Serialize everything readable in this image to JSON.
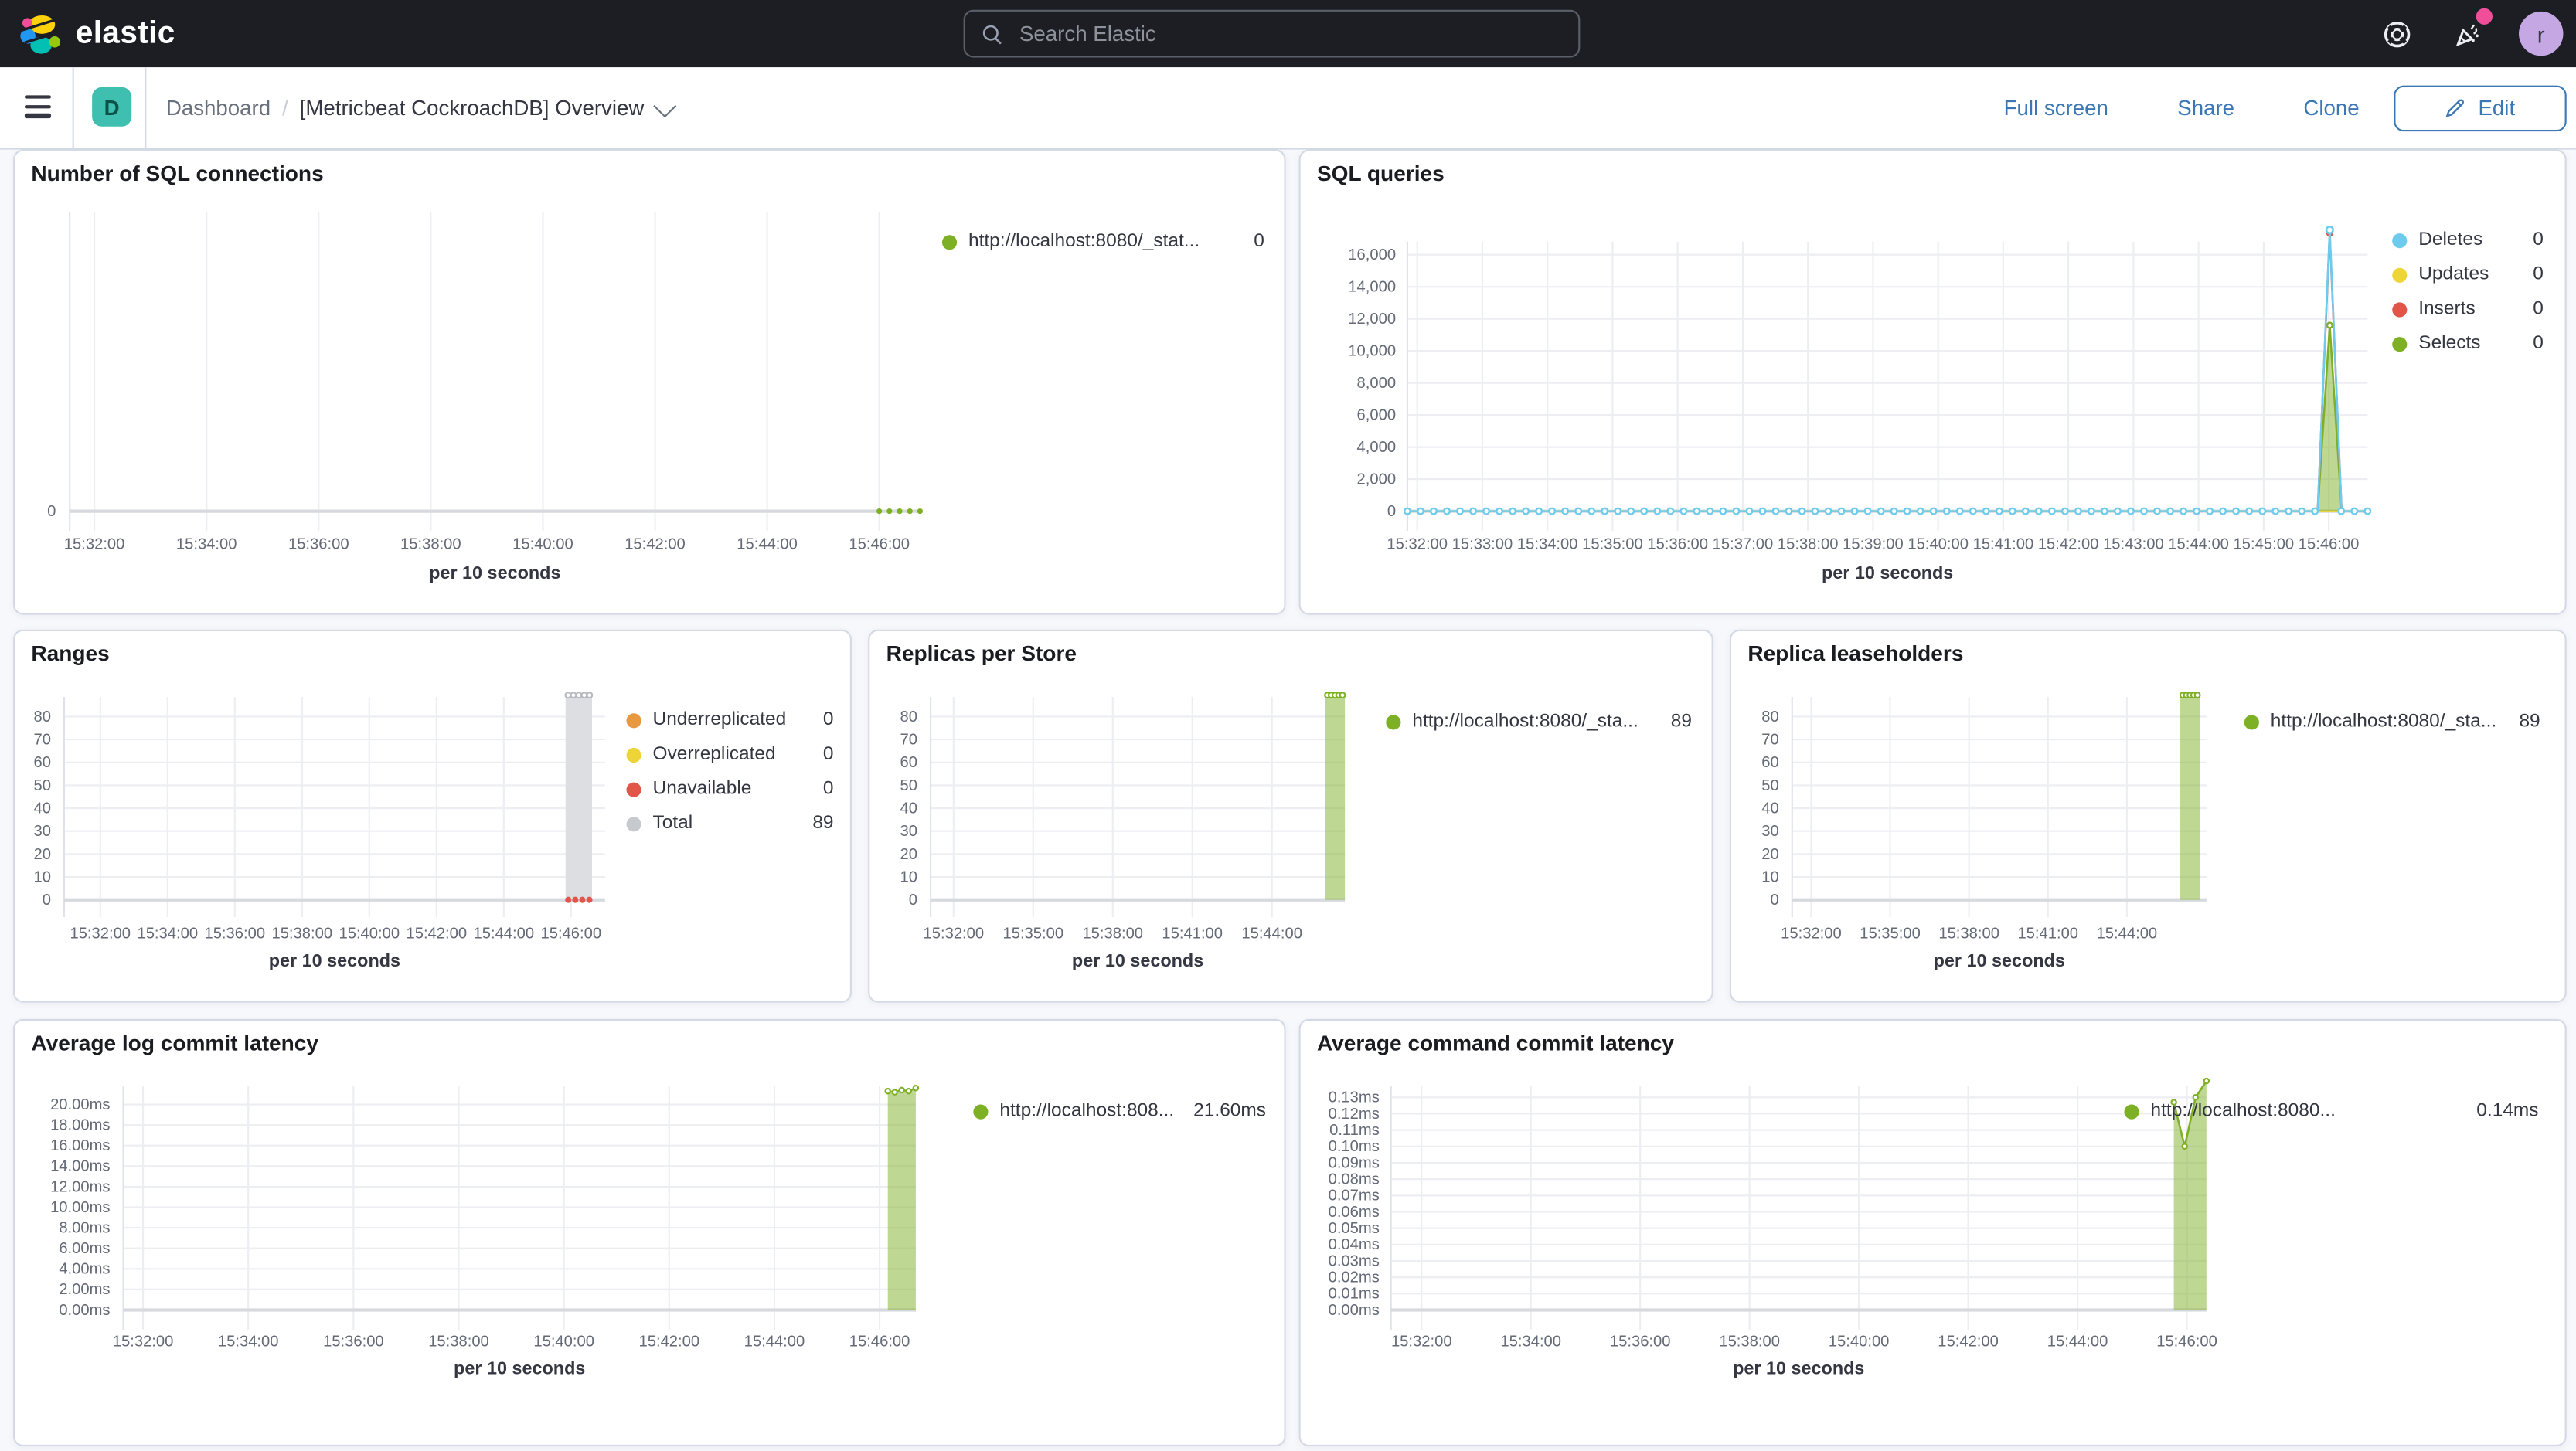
{
  "header": {
    "logo_text": "elastic",
    "search_placeholder": "Search Elastic",
    "avatar_initial": "r",
    "colors": {
      "header_bg": "#1d1e24",
      "notification_pink": "#f04e98",
      "avatar_purple": "#c5a8e3"
    }
  },
  "nav": {
    "space_initial": "D",
    "breadcrumb_root": "Dashboard",
    "breadcrumb_separator": "/",
    "title": "[Metricbeat CockroachDB] Overview",
    "actions": [
      "Full screen",
      "Share",
      "Clone"
    ],
    "edit_label": "Edit",
    "link_color": "#3b77b5",
    "space_badge_color": "#3fbfb0"
  },
  "colors": {
    "series_green": "#7eb026",
    "series_blue": "#6dcbee",
    "series_red": "#e2564a",
    "series_yellow": "#edd537",
    "series_orange": "#e8983e",
    "series_gray": "#c6c9ce",
    "bar_gray_fill": "#dcdee1",
    "grid": "#eceef2",
    "axis_line": "#d6d9de",
    "panel_border": "#d3dae6",
    "tick_text": "#646a76"
  },
  "panels": [
    {
      "id": "sql-connections",
      "title": "Number of SQL connections",
      "xaxis_title": "per 10 seconds",
      "y_ticks": [
        "0"
      ],
      "x_ticks": [
        "15:32:00",
        "15:34:00",
        "15:36:00",
        "15:38:00",
        "15:40:00",
        "15:42:00",
        "15:44:00",
        "15:46:00"
      ],
      "legend": [
        {
          "label": "http://localhost:8080/_stat...",
          "value": "0",
          "color": "#7eb026"
        }
      ],
      "chart": {
        "type": "line",
        "x_domain": [
          "15:31:40",
          "15:46:50"
        ],
        "series": [
          {
            "name": "http://localhost:8080/_stat...",
            "color": "#7eb026",
            "render": "dots",
            "r": 1.7,
            "points": [
              [
                0.952,
                0
              ],
              [
                0.964,
                0
              ],
              [
                0.976,
                0
              ],
              [
                0.988,
                0
              ],
              [
                1.0,
                0
              ]
            ]
          }
        ]
      }
    },
    {
      "id": "sql-queries",
      "title": "SQL queries",
      "xaxis_title": "per 10 seconds",
      "y_ticks": [
        "16,000",
        "14,000",
        "12,000",
        "10,000",
        "8,000",
        "6,000",
        "4,000",
        "2,000",
        "0"
      ],
      "x_ticks": [
        "15:32:00",
        "15:33:00",
        "15:34:00",
        "15:35:00",
        "15:36:00",
        "15:37:00",
        "15:38:00",
        "15:39:00",
        "15:40:00",
        "15:41:00",
        "15:42:00",
        "15:43:00",
        "15:44:00",
        "15:45:00",
        "15:46:00"
      ],
      "legend": [
        {
          "label": "Deletes",
          "value": "0",
          "color": "#6dcbee"
        },
        {
          "label": "Updates",
          "value": "0",
          "color": "#edd537"
        },
        {
          "label": "Inserts",
          "value": "0",
          "color": "#e2564a"
        },
        {
          "label": "Selects",
          "value": "0",
          "color": "#7eb026"
        }
      ],
      "chart": {
        "type": "line",
        "x_domain": [
          "15:31:40",
          "15:46:50"
        ],
        "spike_time": "15:46:00",
        "series": [
          {
            "name": "Updates",
            "color": "#edd537",
            "render": "line",
            "points": [
              [
                0,
                0
              ],
              [
                1,
                0
              ]
            ]
          },
          {
            "name": "Selects",
            "color": "#7eb026",
            "render": "area",
            "apex_marker": true,
            "points": [
              [
                0.948,
                0
              ],
              [
                0.9606,
                11600
              ],
              [
                0.973,
                0
              ]
            ]
          },
          {
            "name": "Inserts",
            "color": "#e2564a",
            "render": "line",
            "apex_marker": true,
            "points": [
              [
                0.948,
                0
              ],
              [
                0.9606,
                17350
              ],
              [
                0.973,
                0
              ]
            ]
          },
          {
            "name": "Deletes",
            "color": "#6dcbee",
            "render": "markerline",
            "marker_skip": [
              0.949,
              0.972
            ],
            "points": [
              [
                0,
                0
              ],
              [
                0.948,
                0
              ],
              [
                0.9606,
                17550
              ],
              [
                0.973,
                0
              ],
              [
                1,
                0
              ]
            ]
          }
        ]
      }
    },
    {
      "id": "ranges",
      "title": "Ranges",
      "xaxis_title": "per 10 seconds",
      "y_ticks": [
        "80",
        "70",
        "60",
        "50",
        "40",
        "30",
        "20",
        "10",
        "0"
      ],
      "x_ticks": [
        "15:32:00",
        "15:34:00",
        "15:36:00",
        "15:38:00",
        "15:40:00",
        "15:42:00",
        "15:44:00",
        "15:46:00"
      ],
      "legend": [
        {
          "label": "Underreplicated",
          "value": "0",
          "color": "#e8983e"
        },
        {
          "label": "Overreplicated",
          "value": "0",
          "color": "#edd537"
        },
        {
          "label": "Unavailable",
          "value": "0",
          "color": "#e2564a"
        },
        {
          "label": "Total",
          "value": "89",
          "color": "#c6c9ce"
        }
      ],
      "chart": {
        "type": "bar",
        "x_domain": [
          "15:31:40",
          "15:46:50"
        ],
        "series": [
          {
            "name": "Total",
            "render": "bar",
            "x0": 0.927,
            "x1": 0.976,
            "value": 89,
            "fill": "#dcdee1",
            "cap_dots": "#b7bac0",
            "cap_n": 5
          },
          {
            "name": "Unavailable",
            "color": "#e2564a",
            "render": "dots",
            "r": 1.9,
            "points": [
              [
                0.932,
                0
              ],
              [
                0.945,
                0
              ],
              [
                0.958,
                0
              ],
              [
                0.971,
                0
              ]
            ]
          },
          {
            "name": "Underreplicated",
            "render": "none",
            "value": 0
          },
          {
            "name": "Overreplicated",
            "render": "none",
            "value": 0
          }
        ]
      }
    },
    {
      "id": "replicas-per-store",
      "title": "Replicas per Store",
      "xaxis_title": "per 10 seconds",
      "y_ticks": [
        "80",
        "70",
        "60",
        "50",
        "40",
        "30",
        "20",
        "10",
        "0"
      ],
      "x_ticks": [
        "15:32:00",
        "15:35:00",
        "15:38:00",
        "15:41:00",
        "15:44:00"
      ],
      "legend": [
        {
          "label": "http://localhost:8080/_sta...",
          "value": "89",
          "color": "#7eb026"
        }
      ],
      "chart": {
        "type": "bar",
        "x_domain": [
          "15:31:40",
          "15:46:50"
        ],
        "series": [
          {
            "name": "http://localhost:8080/_sta...",
            "render": "bar",
            "x0": 0.952,
            "x1": 1.0,
            "value": 89,
            "fill": "#7eb026",
            "fill_opacity": 0.5,
            "cap_dots": "#7eb026",
            "cap_n": 5
          }
        ]
      }
    },
    {
      "id": "replica-leaseholders",
      "title": "Replica leaseholders",
      "xaxis_title": "per 10 seconds",
      "y_ticks": [
        "80",
        "70",
        "60",
        "50",
        "40",
        "30",
        "20",
        "10",
        "0"
      ],
      "x_ticks": [
        "15:32:00",
        "15:35:00",
        "15:38:00",
        "15:41:00",
        "15:44:00"
      ],
      "legend": [
        {
          "label": "http://localhost:8080/_sta...",
          "value": "89",
          "color": "#7eb026"
        }
      ],
      "chart": {
        "type": "bar",
        "x_domain": [
          "15:31:40",
          "15:46:50"
        ],
        "series": [
          {
            "name": "http://localhost:8080/_sta...",
            "render": "bar",
            "x0": 0.937,
            "x1": 0.984,
            "value": 89,
            "fill": "#7eb026",
            "fill_opacity": 0.5,
            "cap_dots": "#7eb026",
            "cap_n": 5
          }
        ]
      }
    },
    {
      "id": "avg-log-commit-latency",
      "title": "Average log commit latency",
      "xaxis_title": "per 10 seconds",
      "y_ticks": [
        "20.00ms",
        "18.00ms",
        "16.00ms",
        "14.00ms",
        "12.00ms",
        "10.00ms",
        "8.00ms",
        "6.00ms",
        "4.00ms",
        "2.00ms",
        "0.00ms"
      ],
      "x_ticks": [
        "15:32:00",
        "15:34:00",
        "15:36:00",
        "15:38:00",
        "15:40:00",
        "15:42:00",
        "15:44:00",
        "15:46:00"
      ],
      "legend": [
        {
          "label": "http://localhost:808...",
          "value": "21.60ms",
          "color": "#7eb026"
        }
      ],
      "chart": {
        "type": "area",
        "unit": "ms",
        "x_domain": [
          "15:31:40",
          "15:46:50"
        ],
        "series": [
          {
            "name": "http://localhost:808...",
            "color": "#7eb026",
            "render": "area",
            "markers": true,
            "points": [
              [
                0.9647,
                21.3
              ],
              [
                0.9735,
                21.2
              ],
              [
                0.9823,
                21.4
              ],
              [
                0.9911,
                21.3
              ],
              [
                1.0,
                21.6
              ]
            ]
          }
        ]
      }
    },
    {
      "id": "avg-command-commit-latency",
      "title": "Average command commit latency",
      "xaxis_title": "per 10 seconds",
      "y_ticks": [
        "0.13ms",
        "0.12ms",
        "0.11ms",
        "0.10ms",
        "0.09ms",
        "0.08ms",
        "0.07ms",
        "0.06ms",
        "0.05ms",
        "0.04ms",
        "0.03ms",
        "0.02ms",
        "0.01ms",
        "0.00ms"
      ],
      "x_ticks": [
        "15:32:00",
        "15:34:00",
        "15:36:00",
        "15:38:00",
        "15:40:00",
        "15:42:00",
        "15:44:00",
        "15:46:00"
      ],
      "legend": [
        {
          "label": "http://localhost:8080...",
          "value": "0.14ms",
          "color": "#7eb026"
        }
      ],
      "chart": {
        "type": "area",
        "unit": "ms",
        "x_domain": [
          "15:31:40",
          "15:46:50"
        ],
        "series": [
          {
            "name": "http://localhost:8080...",
            "color": "#7eb026",
            "render": "area",
            "markers": true,
            "points": [
              [
                0.96,
                0.127
              ],
              [
                0.9733,
                0.1
              ],
              [
                0.9867,
                0.13
              ],
              [
                1.0,
                0.14
              ]
            ]
          }
        ]
      }
    }
  ]
}
